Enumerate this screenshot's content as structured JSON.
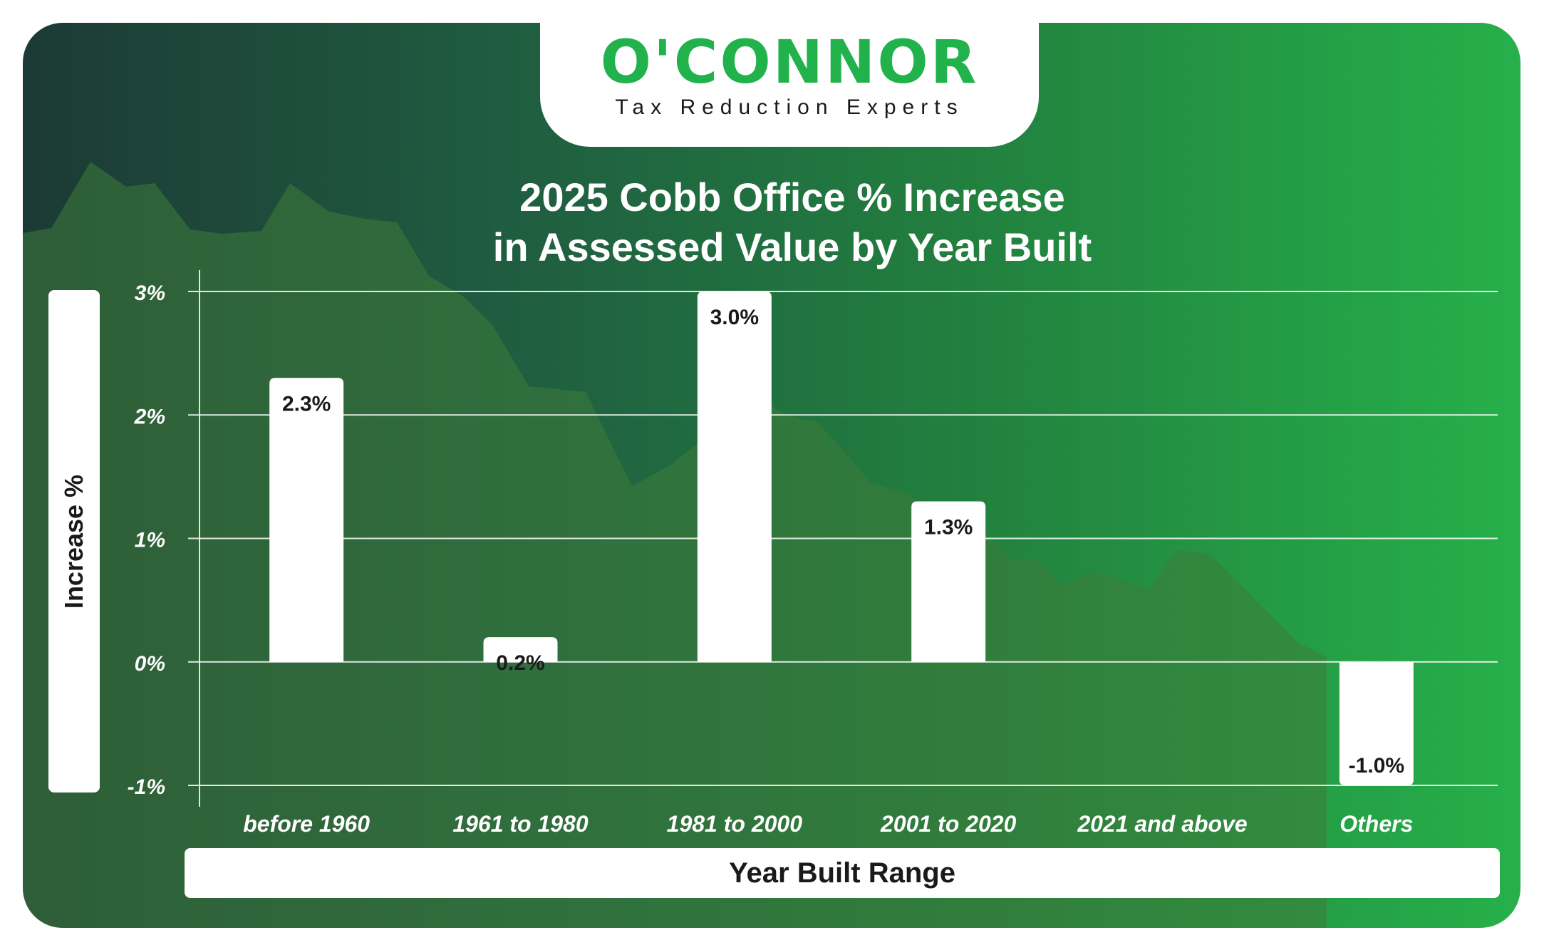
{
  "logo": {
    "wordmark": "O'CONNOR",
    "tagline": "Tax Reduction Experts"
  },
  "colors": {
    "brand_green": "#22b24c",
    "bar": "#ffffff",
    "background_start": "#1c3a35",
    "background_end": "#26b04a"
  },
  "chart_data": {
    "type": "bar",
    "title_line1": "2025 Cobb Office % Increase",
    "title_line2": "in Assessed Value by Year Built",
    "xlabel": "Year Built Range",
    "ylabel": "Increase %",
    "categories": [
      "before 1960",
      "1961 to 1980",
      "1981 to 2000",
      "2001 to 2020",
      "2021 and above",
      "Others"
    ],
    "values": [
      2.3,
      0.2,
      3.0,
      1.3,
      null,
      -1.0
    ],
    "data_labels": [
      "2.3%",
      "0.2%",
      "3.0%",
      "1.3%",
      "",
      "-1.0%"
    ],
    "ylim": [
      -1,
      3
    ],
    "yticks": [
      -1,
      0,
      1,
      2,
      3
    ],
    "ytick_labels": [
      "-1%",
      "0%",
      "1%",
      "2%",
      "3%"
    ],
    "grid": true,
    "legend": "none"
  }
}
